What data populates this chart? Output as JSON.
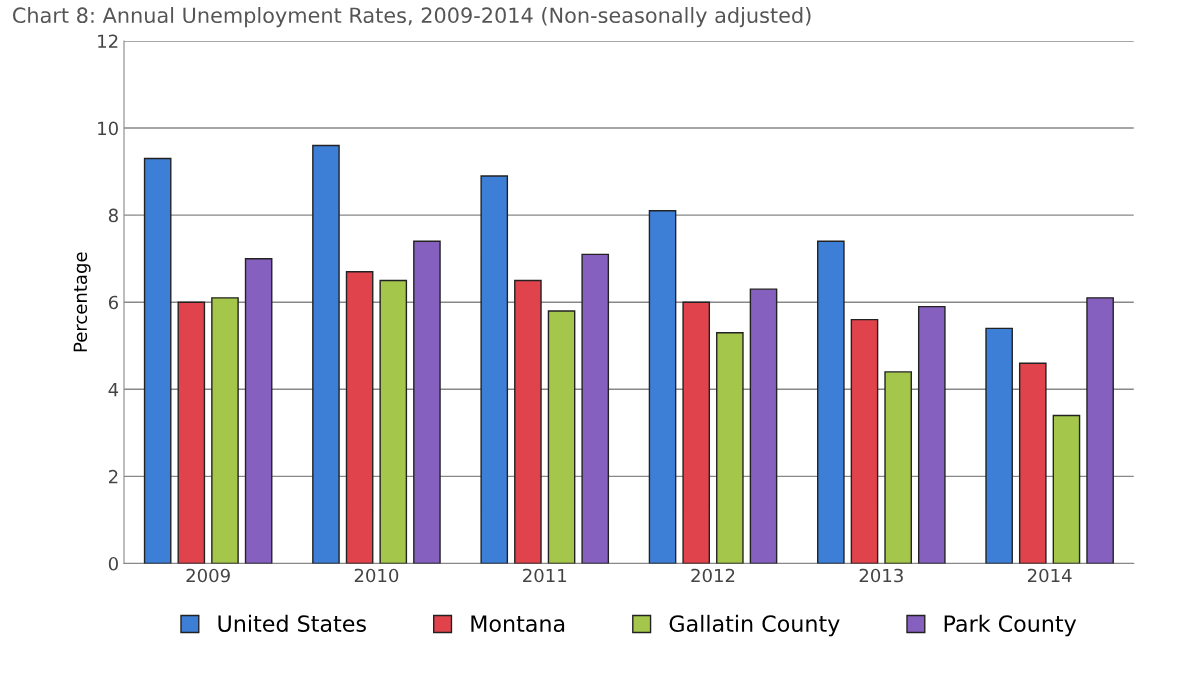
{
  "chart_data": {
    "type": "bar",
    "title": "Chart 8: Annual Unemployment Rates, 2009-2014 (Non-seasonally adjusted)",
    "ylabel": "Percentage",
    "categories": [
      "2009",
      "2010",
      "2011",
      "2012",
      "2013",
      "2014"
    ],
    "series": [
      {
        "name": "United States",
        "color": "#3d7fd6",
        "values": [
          9.3,
          9.6,
          8.9,
          8.1,
          7.4,
          5.4
        ]
      },
      {
        "name": "Montana",
        "color": "#e0434b",
        "values": [
          6.0,
          6.7,
          6.5,
          6.0,
          5.6,
          4.6
        ]
      },
      {
        "name": "Gallatin County",
        "color": "#a4c64a",
        "values": [
          6.1,
          6.5,
          5.8,
          5.3,
          4.4,
          3.4
        ]
      },
      {
        "name": "Park County",
        "color": "#8660bf",
        "values": [
          7.0,
          7.4,
          7.1,
          6.3,
          5.9,
          6.1
        ]
      }
    ],
    "ylim": [
      0,
      12
    ],
    "yticks": [
      0,
      2,
      4,
      6,
      8,
      10,
      12
    ],
    "grid": "y",
    "legend": "bottom"
  }
}
